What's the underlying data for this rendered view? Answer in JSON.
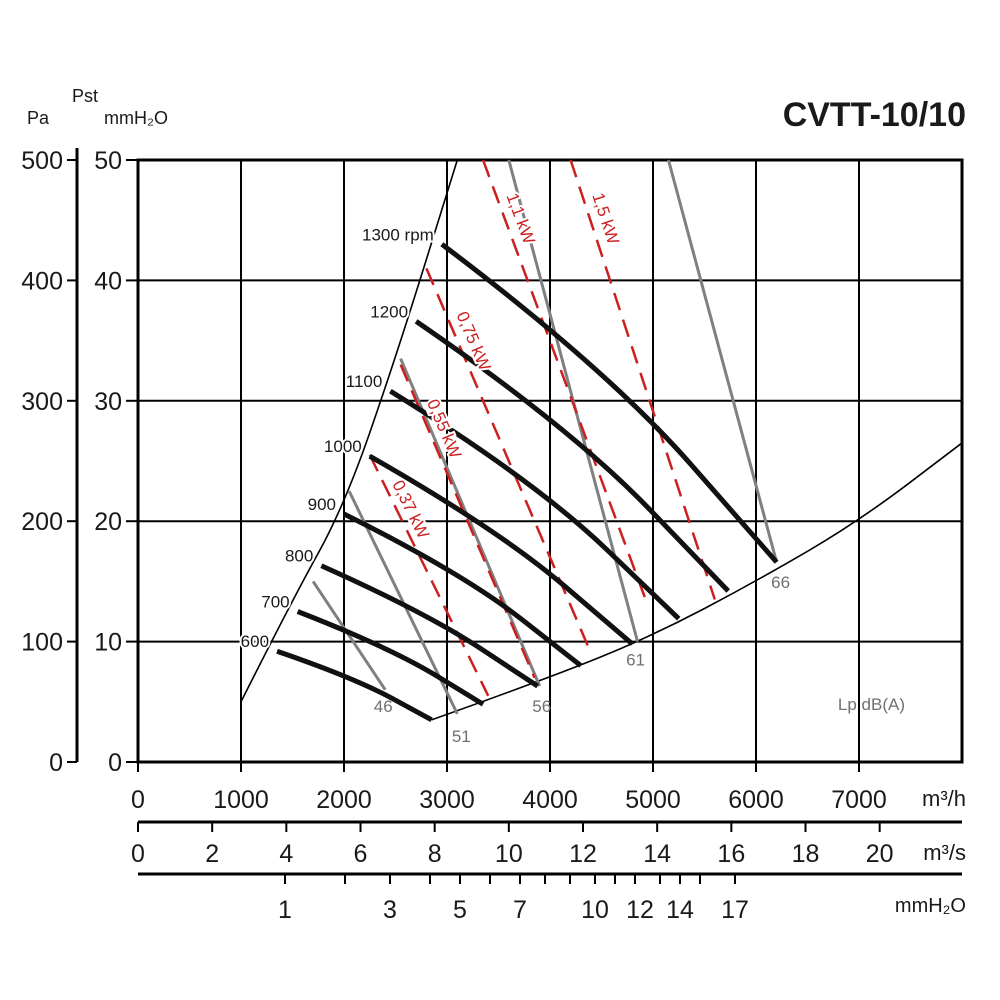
{
  "chart_data": {
    "type": "line",
    "title": "CVTT-10/10",
    "y_left_labels": {
      "pa": "Pa",
      "pst": "Pst",
      "mmh2o": "mmH₂O"
    },
    "y_pa_ticks": [
      "0",
      "100",
      "200",
      "300",
      "400",
      "500"
    ],
    "y_mm_ticks": [
      "0",
      "10",
      "20",
      "30",
      "40",
      "50"
    ],
    "ylim_pa": [
      0,
      500
    ],
    "xlim_m3h": [
      0,
      8000
    ],
    "x_m3h_ticks": [
      "0",
      "1000",
      "2000",
      "3000",
      "4000",
      "5000",
      "6000",
      "7000"
    ],
    "x_m3h_unit": "m³/h",
    "x_m3s_ticks": [
      "0",
      "2",
      "4",
      "6",
      "8",
      "10",
      "12",
      "14",
      "16",
      "18",
      "20"
    ],
    "x_m3s_unit": "m³/s",
    "x_mmh2o_ticks": [
      "1",
      "3",
      "5",
      "7",
      "10",
      "12",
      "14",
      "17"
    ],
    "x_mmh2o_unit": "mmH₂O",
    "speed_curves": [
      {
        "name": "600",
        "x": [
          1350,
          2100,
          2850
        ],
        "y": [
          92,
          70,
          35
        ]
      },
      {
        "name": "700",
        "x": [
          1550,
          2450,
          3350
        ],
        "y": [
          125,
          95,
          48
        ]
      },
      {
        "name": "800",
        "x": [
          1780,
          2800,
          3880
        ],
        "y": [
          163,
          124,
          63
        ]
      },
      {
        "name": "900",
        "x": [
          2000,
          3150,
          4300
        ],
        "y": [
          206,
          157,
          80
        ]
      },
      {
        "name": "1000",
        "x": [
          2250,
          3500,
          4800
        ],
        "y": [
          254,
          193,
          98
        ]
      },
      {
        "name": "1100",
        "x": [
          2450,
          3850,
          5250
        ],
        "y": [
          308,
          234,
          119
        ]
      },
      {
        "name": "1200",
        "x": [
          2700,
          4200,
          5730
        ],
        "y": [
          366,
          278,
          142
        ]
      },
      {
        "name": "1300 rpm",
        "x": [
          2950,
          4550,
          6200
        ],
        "y": [
          430,
          327,
          166
        ]
      }
    ],
    "power_lines": [
      {
        "name": "0,37 kW",
        "x": [
          2250,
          3400
        ],
        "y": [
          255,
          55
        ]
      },
      {
        "name": "0,55 kW",
        "x": [
          2550,
          3850
        ],
        "y": [
          330,
          70
        ]
      },
      {
        "name": "0,75 kW",
        "x": [
          2800,
          4400
        ],
        "y": [
          410,
          90
        ]
      },
      {
        "name": "1,1 kW",
        "x": [
          3350,
          4950
        ],
        "y": [
          500,
          130
        ]
      },
      {
        "name": "1,5 kW",
        "x": [
          4200,
          5600
        ],
        "y": [
          500,
          135
        ]
      }
    ],
    "noise_lines": [
      {
        "name": "46",
        "x": [
          1700,
          2400
        ],
        "y": [
          150,
          60
        ]
      },
      {
        "name": "51",
        "x": [
          2050,
          3100
        ],
        "y": [
          225,
          40
        ]
      },
      {
        "name": "56",
        "x": [
          2550,
          3900
        ],
        "y": [
          335,
          63
        ]
      },
      {
        "name": "61",
        "x": [
          3600,
          4850
        ],
        "y": [
          500,
          100
        ]
      },
      {
        "name": "66",
        "x": [
          5150,
          6200
        ],
        "y": [
          500,
          166
        ]
      }
    ],
    "noise_unit": "Lp dB(A)",
    "boundary_left": {
      "x": [
        1000,
        1500,
        2000,
        2500,
        3100
      ],
      "y": [
        50,
        135,
        212,
        335,
        500
      ]
    },
    "boundary_bottom": {
      "x": [
        2850,
        4000,
        5000,
        6000,
        7000,
        8000
      ],
      "y": [
        35,
        70,
        105,
        150,
        200,
        265
      ]
    }
  }
}
